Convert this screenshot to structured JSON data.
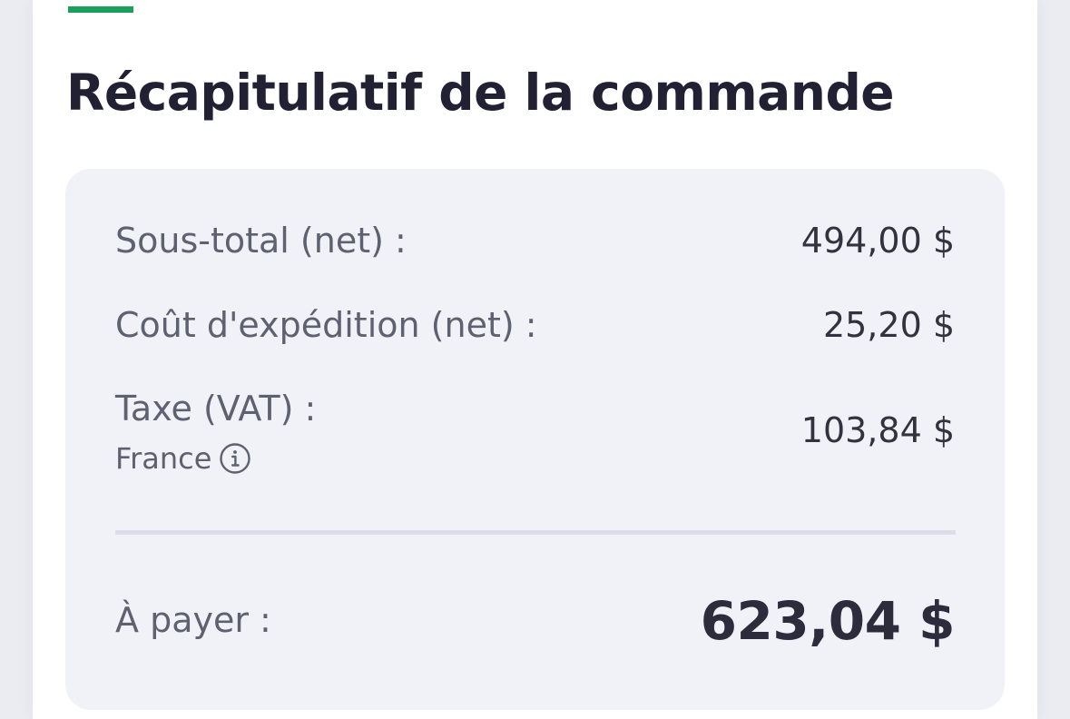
{
  "order_summary": {
    "title": "Récapitulatif de la commande",
    "subtotal": {
      "label": "Sous-total (net) :",
      "value": "494,00 $"
    },
    "shipping": {
      "label": "Coût d'expédition (net) :",
      "value": "25,20 $"
    },
    "tax": {
      "label": "Taxe (VAT) :",
      "country": "France",
      "value": "103,84 $",
      "info_icon": "info-icon"
    },
    "total": {
      "label": "À payer :",
      "value": "623,04 $"
    }
  },
  "colors": {
    "accent": "#1aa05a",
    "title": "#222033",
    "box_background": "#f1f2f8",
    "label": "#5d6170",
    "value": "#33323f"
  }
}
